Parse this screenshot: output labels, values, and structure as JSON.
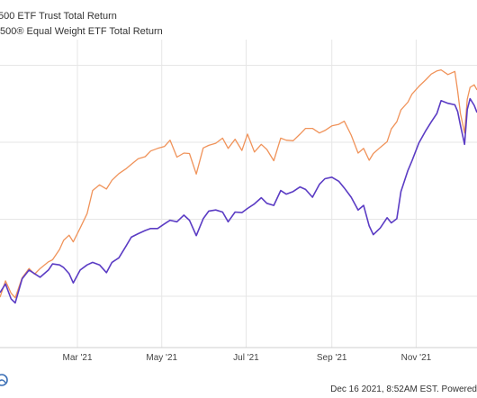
{
  "chart_data": {
    "type": "line",
    "xlim": [
      "2021-01-04",
      "2021-12-15"
    ],
    "ylim": [
      80,
      140
    ],
    "grid": true,
    "legend_position": "top-left",
    "x_ticks": [
      {
        "date": "2021-03-01",
        "label": "Mar '21"
      },
      {
        "date": "2021-05-01",
        "label": "May '21"
      },
      {
        "date": "2021-07-01",
        "label": "Jul '21"
      },
      {
        "date": "2021-09-01",
        "label": "Sep '21"
      },
      {
        "date": "2021-11-01",
        "label": "Nov '21"
      }
    ],
    "y_gridlines": [
      90,
      105,
      120,
      135
    ],
    "series": [
      {
        "name": "500 ETF Trust Total Return",
        "color": "#5b3cc4",
        "points": [
          [
            "2021-01-04",
            90.7
          ],
          [
            "2021-01-08",
            92.4
          ],
          [
            "2021-01-12",
            89.5
          ],
          [
            "2021-01-15",
            88.7
          ],
          [
            "2021-01-20",
            93.4
          ],
          [
            "2021-01-25",
            95.1
          ],
          [
            "2021-01-29",
            94.4
          ],
          [
            "2021-02-02",
            93.7
          ],
          [
            "2021-02-08",
            95.1
          ],
          [
            "2021-02-11",
            96.3
          ],
          [
            "2021-02-16",
            96.1
          ],
          [
            "2021-02-19",
            95.6
          ],
          [
            "2021-02-23",
            94.4
          ],
          [
            "2021-02-26",
            92.6
          ],
          [
            "2021-03-03",
            95.1
          ],
          [
            "2021-03-08",
            96.1
          ],
          [
            "2021-03-12",
            96.6
          ],
          [
            "2021-03-17",
            96.1
          ],
          [
            "2021-03-22",
            94.6
          ],
          [
            "2021-03-26",
            96.6
          ],
          [
            "2021-03-31",
            97.5
          ],
          [
            "2021-04-05",
            99.7
          ],
          [
            "2021-04-09",
            101.5
          ],
          [
            "2021-04-14",
            102.2
          ],
          [
            "2021-04-19",
            102.8
          ],
          [
            "2021-04-23",
            103.2
          ],
          [
            "2021-04-28",
            103.2
          ],
          [
            "2021-05-03",
            104.1
          ],
          [
            "2021-05-07",
            104.8
          ],
          [
            "2021-05-12",
            104.5
          ],
          [
            "2021-05-17",
            105.8
          ],
          [
            "2021-05-21",
            104.8
          ],
          [
            "2021-05-26",
            101.8
          ],
          [
            "2021-05-31",
            105.1
          ],
          [
            "2021-06-04",
            106.6
          ],
          [
            "2021-06-09",
            106.8
          ],
          [
            "2021-06-14",
            106.4
          ],
          [
            "2021-06-18",
            104.5
          ],
          [
            "2021-06-23",
            106.4
          ],
          [
            "2021-06-28",
            106.3
          ],
          [
            "2021-07-02",
            107.1
          ],
          [
            "2021-07-07",
            108.0
          ],
          [
            "2021-07-12",
            109.2
          ],
          [
            "2021-07-16",
            108.1
          ],
          [
            "2021-07-21",
            107.7
          ],
          [
            "2021-07-26",
            110.6
          ],
          [
            "2021-07-30",
            109.9
          ],
          [
            "2021-08-04",
            110.4
          ],
          [
            "2021-08-09",
            111.3
          ],
          [
            "2021-08-13",
            110.8
          ],
          [
            "2021-08-18",
            109.3
          ],
          [
            "2021-08-23",
            111.8
          ],
          [
            "2021-08-27",
            112.9
          ],
          [
            "2021-09-01",
            113.2
          ],
          [
            "2021-09-06",
            112.4
          ],
          [
            "2021-09-10",
            111.1
          ],
          [
            "2021-09-15",
            109.3
          ],
          [
            "2021-09-20",
            106.8
          ],
          [
            "2021-09-24",
            107.7
          ],
          [
            "2021-09-28",
            103.7
          ],
          [
            "2021-10-01",
            102.0
          ],
          [
            "2021-10-06",
            103.3
          ],
          [
            "2021-10-11",
            105.3
          ],
          [
            "2021-10-14",
            104.3
          ],
          [
            "2021-10-18",
            105.1
          ],
          [
            "2021-10-21",
            110.4
          ],
          [
            "2021-10-26",
            114.5
          ],
          [
            "2021-10-29",
            116.4
          ],
          [
            "2021-11-03",
            119.9
          ],
          [
            "2021-11-08",
            122.3
          ],
          [
            "2021-11-12",
            124.0
          ],
          [
            "2021-11-16",
            125.6
          ],
          [
            "2021-11-19",
            128.1
          ],
          [
            "2021-11-24",
            127.6
          ],
          [
            "2021-11-29",
            127.3
          ],
          [
            "2021-12-01",
            126.0
          ],
          [
            "2021-12-03",
            123.3
          ],
          [
            "2021-12-06",
            119.6
          ],
          [
            "2021-12-08",
            126.4
          ],
          [
            "2021-12-10",
            128.5
          ],
          [
            "2021-12-13",
            127.2
          ],
          [
            "2021-12-15",
            125.8
          ]
        ]
      },
      {
        "name": "500® Equal Weight ETF Total Return",
        "color": "#f0935a",
        "points": [
          [
            "2021-01-04",
            89.8
          ],
          [
            "2021-01-08",
            93.0
          ],
          [
            "2021-01-12",
            90.6
          ],
          [
            "2021-01-15",
            89.7
          ],
          [
            "2021-01-20",
            93.6
          ],
          [
            "2021-01-25",
            95.4
          ],
          [
            "2021-01-29",
            94.3
          ],
          [
            "2021-02-02",
            95.4
          ],
          [
            "2021-02-08",
            96.7
          ],
          [
            "2021-02-11",
            97.1
          ],
          [
            "2021-02-16",
            99.1
          ],
          [
            "2021-02-19",
            100.9
          ],
          [
            "2021-02-23",
            101.9
          ],
          [
            "2021-02-26",
            100.6
          ],
          [
            "2021-03-03",
            103.3
          ],
          [
            "2021-03-08",
            106.1
          ],
          [
            "2021-03-12",
            110.6
          ],
          [
            "2021-03-17",
            111.7
          ],
          [
            "2021-03-22",
            110.9
          ],
          [
            "2021-03-26",
            112.6
          ],
          [
            "2021-03-31",
            113.9
          ],
          [
            "2021-04-05",
            114.8
          ],
          [
            "2021-04-09",
            115.7
          ],
          [
            "2021-04-14",
            116.8
          ],
          [
            "2021-04-19",
            117.2
          ],
          [
            "2021-04-23",
            118.3
          ],
          [
            "2021-04-28",
            118.8
          ],
          [
            "2021-05-03",
            119.2
          ],
          [
            "2021-05-07",
            120.4
          ],
          [
            "2021-05-12",
            117.1
          ],
          [
            "2021-05-17",
            117.9
          ],
          [
            "2021-05-21",
            117.8
          ],
          [
            "2021-05-26",
            113.8
          ],
          [
            "2021-05-31",
            118.9
          ],
          [
            "2021-06-04",
            119.4
          ],
          [
            "2021-06-09",
            119.8
          ],
          [
            "2021-06-14",
            120.8
          ],
          [
            "2021-06-18",
            118.8
          ],
          [
            "2021-06-23",
            120.6
          ],
          [
            "2021-06-28",
            118.4
          ],
          [
            "2021-07-02",
            121.6
          ],
          [
            "2021-07-07",
            118.1
          ],
          [
            "2021-07-12",
            119.6
          ],
          [
            "2021-07-16",
            118.6
          ],
          [
            "2021-07-21",
            116.4
          ],
          [
            "2021-07-26",
            120.8
          ],
          [
            "2021-07-30",
            120.4
          ],
          [
            "2021-08-04",
            120.3
          ],
          [
            "2021-08-09",
            121.6
          ],
          [
            "2021-08-13",
            122.7
          ],
          [
            "2021-08-18",
            122.7
          ],
          [
            "2021-08-23",
            121.8
          ],
          [
            "2021-08-27",
            122.3
          ],
          [
            "2021-09-01",
            123.2
          ],
          [
            "2021-09-06",
            123.5
          ],
          [
            "2021-09-10",
            124.1
          ],
          [
            "2021-09-15",
            121.4
          ],
          [
            "2021-09-20",
            117.9
          ],
          [
            "2021-09-24",
            118.8
          ],
          [
            "2021-09-28",
            116.5
          ],
          [
            "2021-10-01",
            117.8
          ],
          [
            "2021-10-06",
            119.0
          ],
          [
            "2021-10-11",
            120.1
          ],
          [
            "2021-10-14",
            122.6
          ],
          [
            "2021-10-18",
            124.0
          ],
          [
            "2021-10-21",
            126.3
          ],
          [
            "2021-10-26",
            127.8
          ],
          [
            "2021-10-29",
            129.4
          ],
          [
            "2021-11-03",
            130.9
          ],
          [
            "2021-11-08",
            132.2
          ],
          [
            "2021-11-12",
            133.3
          ],
          [
            "2021-11-16",
            133.9
          ],
          [
            "2021-11-19",
            134.1
          ],
          [
            "2021-11-24",
            133.2
          ],
          [
            "2021-11-29",
            133.8
          ],
          [
            "2021-12-01",
            130.0
          ],
          [
            "2021-12-03",
            125.6
          ],
          [
            "2021-12-06",
            121.8
          ],
          [
            "2021-12-08",
            128.4
          ],
          [
            "2021-12-10",
            130.7
          ],
          [
            "2021-12-13",
            131.2
          ],
          [
            "2021-12-15",
            130.2
          ]
        ]
      }
    ]
  },
  "footer": {
    "timestamp_text": "Dec 16 2021, 8:52AM EST. Powered"
  },
  "logo": {
    "icon": "globe-logo-icon",
    "color": "#3b6fb5"
  }
}
